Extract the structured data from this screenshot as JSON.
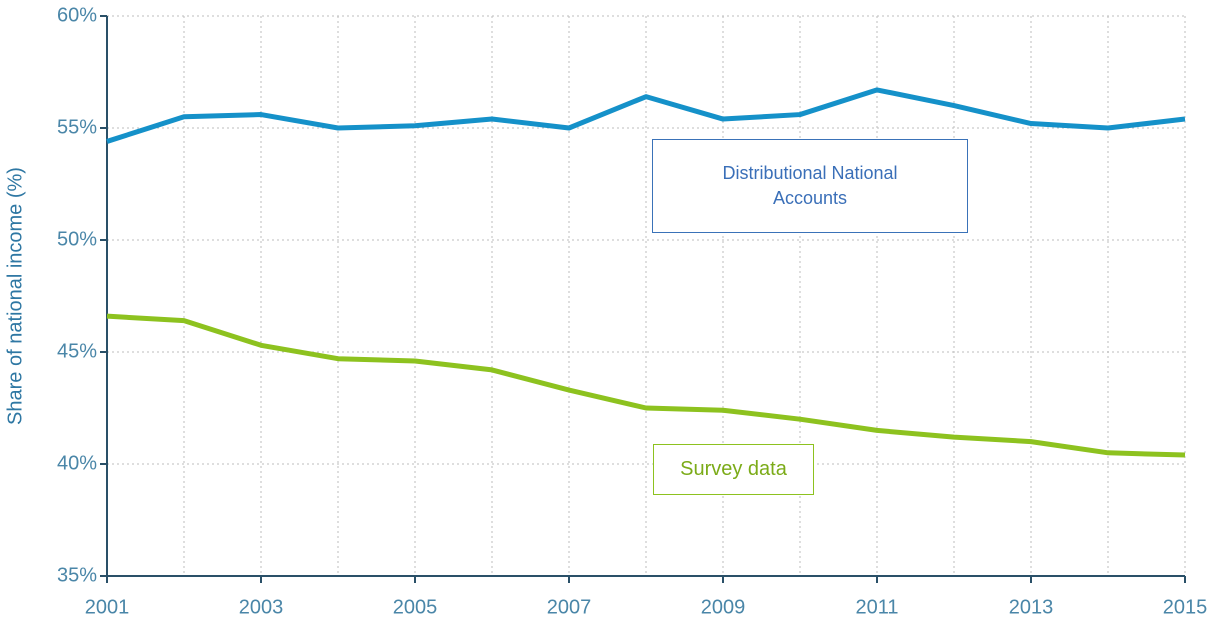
{
  "chart_data": {
    "type": "line",
    "ylabel": "Share of national income (%)",
    "x": [
      2001,
      2002,
      2003,
      2004,
      2005,
      2006,
      2007,
      2008,
      2009,
      2010,
      2011,
      2012,
      2013,
      2014,
      2015
    ],
    "series": [
      {
        "name": "Distributional National Accounts",
        "color": "#1591c9",
        "values": [
          54.4,
          55.5,
          55.6,
          55.0,
          55.1,
          55.4,
          55.0,
          56.4,
          55.4,
          55.6,
          56.7,
          56.0,
          55.2,
          55.0,
          55.4
        ]
      },
      {
        "name": "Survey data",
        "color": "#8dc21f",
        "values": [
          46.6,
          46.4,
          45.3,
          44.7,
          44.6,
          44.2,
          43.3,
          42.5,
          42.4,
          42.0,
          41.5,
          41.2,
          41.0,
          40.5,
          40.4
        ]
      }
    ],
    "xlim": [
      2001,
      2015
    ],
    "xticks": [
      2001,
      2003,
      2005,
      2007,
      2009,
      2011,
      2013,
      2015
    ],
    "ylim": [
      35,
      60
    ],
    "yticks": [
      {
        "value": 35,
        "label": "35%"
      },
      {
        "value": 40,
        "label": "40%"
      },
      {
        "value": 45,
        "label": "45%"
      },
      {
        "value": 50,
        "label": "50%"
      },
      {
        "value": 55,
        "label": "55%"
      },
      {
        "value": 60,
        "label": "60%"
      }
    ],
    "grid": true
  }
}
